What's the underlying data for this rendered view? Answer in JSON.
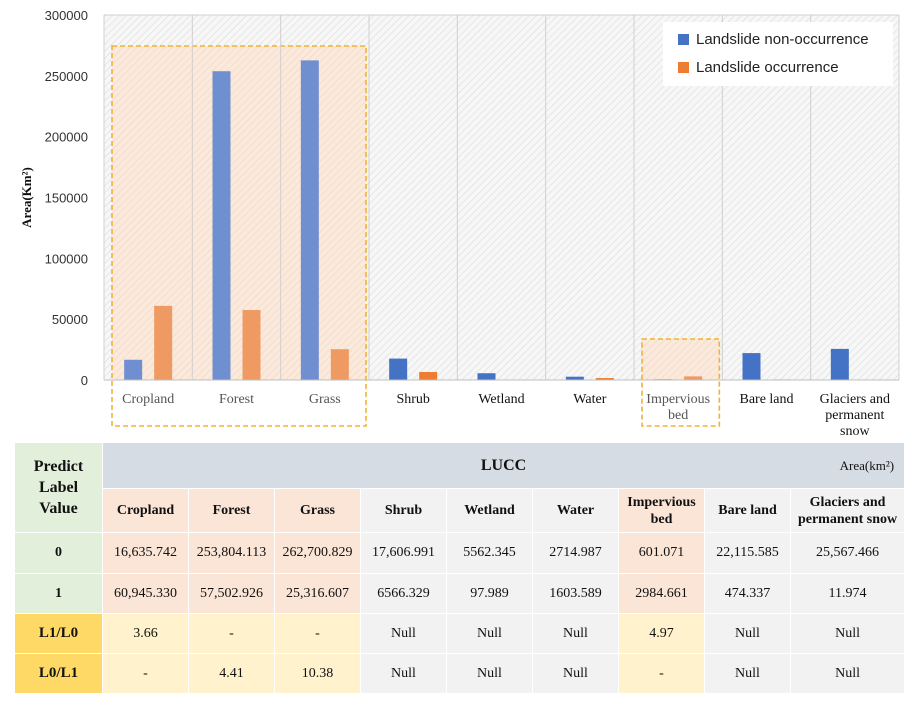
{
  "chart_data": {
    "type": "bar",
    "title": "",
    "xlabel": "",
    "ylabel": "Area(Km²)",
    "ylim": [
      0,
      300000
    ],
    "yticks": [
      "0",
      "50000",
      "100000",
      "150000",
      "200000",
      "250000",
      "300000"
    ],
    "categories": [
      "Cropland",
      "Forest",
      "Grass",
      "Shrub",
      "Wetland",
      "Water",
      "Impervious bed",
      "Bare land",
      "Glaciers and permanent snow"
    ],
    "category_labels": [
      [
        "Cropland"
      ],
      [
        "Forest"
      ],
      [
        "Grass"
      ],
      [
        "Shrub"
      ],
      [
        "Wetland"
      ],
      [
        "Water"
      ],
      [
        "Impervious",
        "bed"
      ],
      [
        "Bare land"
      ],
      [
        "Glaciers and",
        "permanent",
        "snow"
      ]
    ],
    "highlighted_categories": [
      "Cropland",
      "Forest",
      "Grass",
      "Impervious bed"
    ],
    "series": [
      {
        "name": "Landslide non-occurrence",
        "color": "#4472c4",
        "values": [
          16635.742,
          253804.113,
          262700.829,
          17606.991,
          5562.345,
          2714.987,
          601.071,
          22115.585,
          25567.466
        ]
      },
      {
        "name": "Landslide occurrence",
        "color": "#ed7d31",
        "values": [
          60945.33,
          57502.926,
          25316.607,
          6566.329,
          97.989,
          1603.589,
          2984.661,
          474.337,
          11.974
        ]
      }
    ],
    "legend_position": "top-right"
  },
  "table": {
    "corner_label": "Predict Label Value",
    "corner_lines": [
      "Predict",
      "Label",
      "Value"
    ],
    "header_title": "LUCC",
    "unit": "Area(km²)",
    "columns": [
      [
        "Cropland"
      ],
      [
        "Forest"
      ],
      [
        "Grass"
      ],
      [
        "Shrub"
      ],
      [
        "Wetland"
      ],
      [
        "Water"
      ],
      [
        "Impervious",
        "bed"
      ],
      [
        "Bare land"
      ],
      [
        "Glaciers and",
        "permanent snow"
      ]
    ],
    "rows": [
      {
        "label": "0",
        "cells": [
          "16,635.742",
          "253,804.113",
          "262,700.829",
          "17,606.991",
          "5562.345",
          "2714.987",
          "601.071",
          "22,115.585",
          "25,567.466"
        ]
      },
      {
        "label": "1",
        "cells": [
          "60,945.330",
          "57,502.926",
          "25,316.607",
          "6566.329",
          "97.989",
          "1603.589",
          "2984.661",
          "474.337",
          "11.974"
        ]
      },
      {
        "label": "L1/L0",
        "cells": [
          "3.66",
          "-",
          "-",
          "Null",
          "Null",
          "Null",
          "4.97",
          "Null",
          "Null"
        ]
      },
      {
        "label": "L0/L1",
        "cells": [
          "-",
          "4.41",
          "10.38",
          "Null",
          "Null",
          "Null",
          "-",
          "Null",
          "Null"
        ]
      }
    ]
  }
}
